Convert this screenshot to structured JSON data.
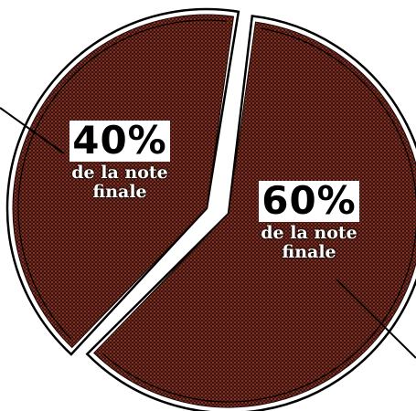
{
  "chart_data": {
    "type": "pie",
    "title": "",
    "slices": [
      {
        "value": 60,
        "label": "60%",
        "text": "de la note finale",
        "color": "#3a1410",
        "dot_color": "#b84a34"
      },
      {
        "value": 40,
        "label": "40%",
        "text": "de la note finale",
        "color": "#3a1410",
        "dot_color": "#b84a34"
      }
    ],
    "legend": "none"
  }
}
